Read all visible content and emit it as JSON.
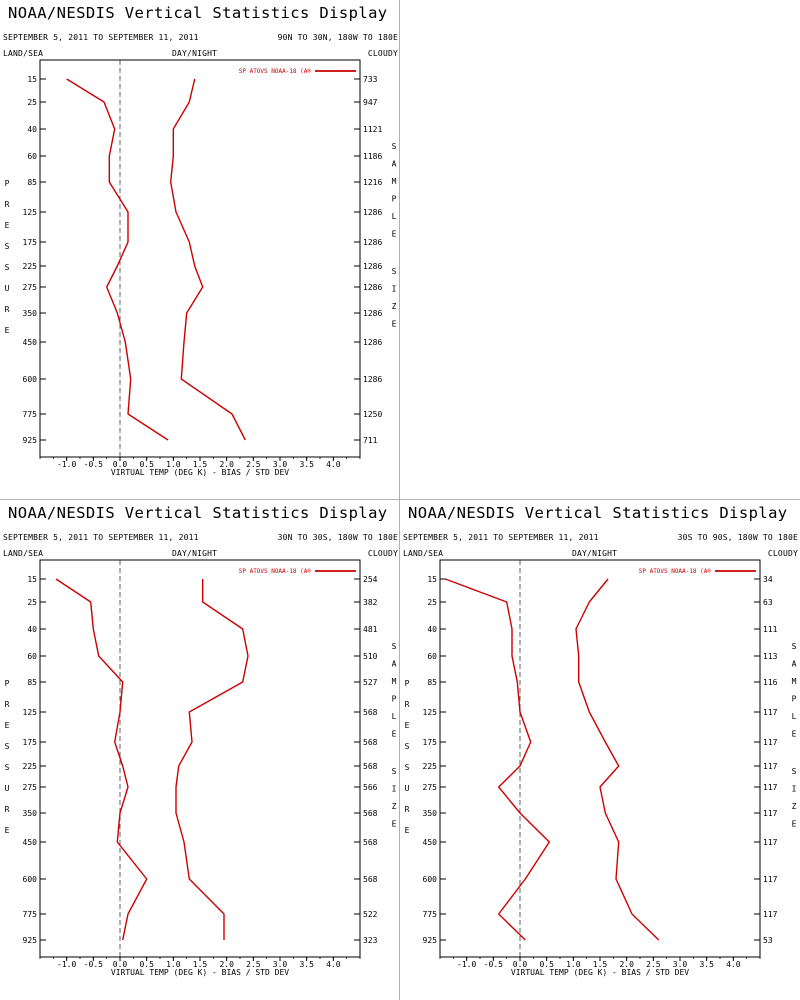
{
  "window_title": "NOAA/NESDIS Vertical Statistics Display",
  "chart_data": [
    {
      "type": "line",
      "title": "NOAA/NESDIS Vertical Statistics Display",
      "date_range": "SEPTEMBER 5, 2011 TO SEPTEMBER 11, 2011",
      "region": "90N TO 30N, 180W TO 180E",
      "top_labels": {
        "left": "LAND/SEA",
        "center": "DAY/NIGHT",
        "right": "CLOUDY"
      },
      "legend": "SP ATOVS NOAA-18 (A®",
      "xlabel": "VIRTUAL TEMP (DEG K) - BIAS / STD DEV",
      "ylabel": "PRESSURE",
      "y2label": "SAMPLE SIZE",
      "xlim": [
        -1.5,
        4.5
      ],
      "xticks": [
        "-1.0",
        "-0.5",
        "0.0",
        "0.5",
        "1.0",
        "1.5",
        "2.0",
        "2.5",
        "3.0",
        "3.5",
        "4.0"
      ],
      "pressure_levels": [
        "15",
        "25",
        "40",
        "60",
        "85",
        "125",
        "175",
        "225",
        "275",
        "350",
        "450",
        "600",
        "775",
        "925"
      ],
      "sample_size": [
        "733",
        "947",
        "1121",
        "1186",
        "1216",
        "1286",
        "1286",
        "1286",
        "1286",
        "1286",
        "1286",
        "1286",
        "1250",
        "711"
      ],
      "series": [
        {
          "name": "BIAS",
          "values": [
            -1.0,
            -0.3,
            -0.1,
            -0.2,
            -0.2,
            0.15,
            0.15,
            -0.05,
            -0.25,
            -0.05,
            0.1,
            0.2,
            0.15,
            0.9
          ]
        },
        {
          "name": "STD DEV",
          "values": [
            1.4,
            1.3,
            1.0,
            1.0,
            0.95,
            1.05,
            1.3,
            1.4,
            1.55,
            1.25,
            1.2,
            1.15,
            2.1,
            2.35
          ]
        }
      ]
    },
    {
      "type": "line",
      "title": "NOAA/NESDIS Vertical Statistics Display",
      "date_range": "SEPTEMBER 5, 2011 TO SEPTEMBER 11, 2011",
      "region": "30N TO 30S, 180W TO 180E",
      "top_labels": {
        "left": "LAND/SEA",
        "center": "DAY/NIGHT",
        "right": "CLOUDY"
      },
      "legend": "SP ATOVS NOAA-18 (A®",
      "xlabel": "VIRTUAL TEMP (DEG K) - BIAS / STD DEV",
      "ylabel": "PRESSURE",
      "y2label": "SAMPLE SIZE",
      "xlim": [
        -1.5,
        4.5
      ],
      "xticks": [
        "-1.0",
        "-0.5",
        "0.0",
        "0.5",
        "1.0",
        "1.5",
        "2.0",
        "2.5",
        "3.0",
        "3.5",
        "4.0"
      ],
      "pressure_levels": [
        "15",
        "25",
        "40",
        "60",
        "85",
        "125",
        "175",
        "225",
        "275",
        "350",
        "450",
        "600",
        "775",
        "925"
      ],
      "sample_size": [
        "254",
        "382",
        "481",
        "510",
        "527",
        "568",
        "568",
        "568",
        "566",
        "568",
        "568",
        "568",
        "522",
        "323"
      ],
      "series": [
        {
          "name": "BIAS",
          "values": [
            -1.2,
            -0.55,
            -0.5,
            -0.4,
            0.05,
            0.0,
            -0.1,
            0.05,
            0.15,
            0.0,
            -0.05,
            0.5,
            0.15,
            0.05
          ]
        },
        {
          "name": "STD DEV",
          "values": [
            1.55,
            1.55,
            2.3,
            2.4,
            2.3,
            1.3,
            1.35,
            1.1,
            1.05,
            1.05,
            1.2,
            1.3,
            1.95,
            1.95
          ]
        }
      ]
    },
    {
      "type": "line",
      "title": "NOAA/NESDIS Vertical Statistics Display",
      "date_range": "SEPTEMBER 5, 2011 TO SEPTEMBER 11, 2011",
      "region": "30S TO 90S, 180W TO 180E",
      "top_labels": {
        "left": "LAND/SEA",
        "center": "DAY/NIGHT",
        "right": "CLOUDY"
      },
      "legend": "SP ATOVS NOAA-18 (A®",
      "xlabel": "VIRTUAL TEMP (DEG K) - BIAS / STD DEV",
      "ylabel": "PRESSURE",
      "y2label": "SAMPLE SIZE",
      "xlim": [
        -1.5,
        4.5
      ],
      "xticks": [
        "-1.0",
        "-0.5",
        "0.0",
        "0.5",
        "1.0",
        "1.5",
        "2.0",
        "2.5",
        "3.0",
        "3.5",
        "4.0"
      ],
      "pressure_levels": [
        "15",
        "25",
        "40",
        "60",
        "85",
        "125",
        "175",
        "225",
        "275",
        "350",
        "450",
        "600",
        "775",
        "925"
      ],
      "sample_size": [
        "34",
        "63",
        "111",
        "113",
        "116",
        "117",
        "117",
        "117",
        "117",
        "117",
        "117",
        "117",
        "117",
        "53"
      ],
      "series": [
        {
          "name": "BIAS",
          "values": [
            -1.4,
            -0.25,
            -0.15,
            -0.15,
            -0.05,
            0.0,
            0.2,
            0.0,
            -0.4,
            0.0,
            0.55,
            0.1,
            -0.4,
            0.1
          ]
        },
        {
          "name": "STD DEV",
          "values": [
            1.65,
            1.3,
            1.05,
            1.1,
            1.1,
            1.3,
            1.6,
            1.85,
            1.5,
            1.6,
            1.85,
            1.8,
            2.1,
            2.6
          ]
        }
      ]
    }
  ]
}
